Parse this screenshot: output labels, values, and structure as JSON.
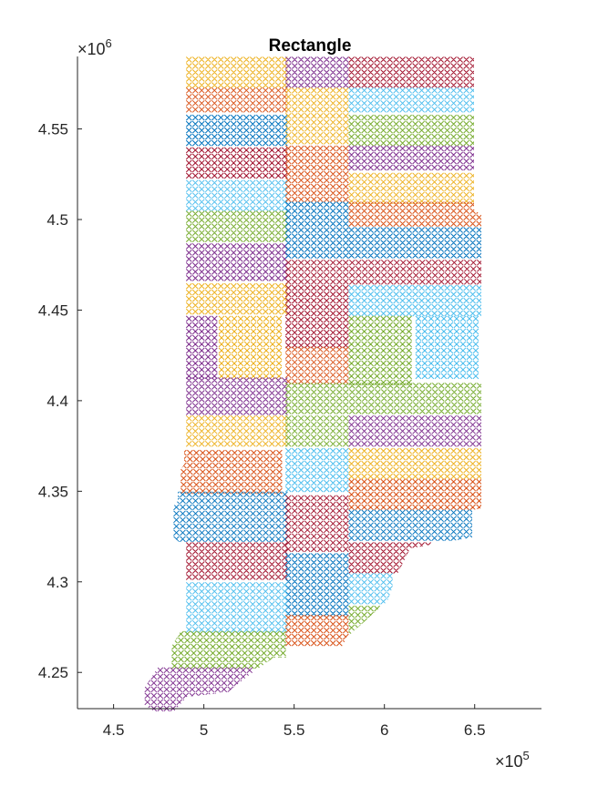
{
  "chart_data": {
    "type": "scatter",
    "title": "Rectangle",
    "xlabel": "",
    "ylabel": "",
    "x_exponent_label": "×10",
    "x_exponent_power": "5",
    "y_exponent_label": "×10",
    "y_exponent_power": "6",
    "xlim": [
      4.3,
      6.87
    ],
    "ylim": [
      4.23,
      4.59
    ],
    "x_scale_note": "x values in units of 1e5, y values in units of 1e6",
    "xticks": [
      4.5,
      5,
      5.5,
      6,
      6.5
    ],
    "xtick_labels": [
      "4.5",
      "5",
      "5.5",
      "6",
      "6.5"
    ],
    "yticks": [
      4.25,
      4.3,
      4.35,
      4.4,
      4.45,
      4.5,
      4.55
    ],
    "ytick_labels": [
      "4.25",
      "4.3",
      "4.35",
      "4.4",
      "4.45",
      "4.5",
      "4.55"
    ],
    "grid": false,
    "legend": "none",
    "marker": "x",
    "colors": [
      "#0072BD",
      "#D95319",
      "#EDB120",
      "#7E2F8E",
      "#77AC30",
      "#4DBEEE",
      "#A2142F"
    ],
    "regions": [
      {
        "x": [
          4.9,
          5.45
        ],
        "y": [
          4.573,
          4.59
        ],
        "color": "#EDB120"
      },
      {
        "x": [
          5.45,
          5.8
        ],
        "y": [
          4.573,
          4.59
        ],
        "color": "#7E2F8E"
      },
      {
        "x": [
          5.8,
          6.5
        ],
        "y": [
          4.573,
          4.59
        ],
        "color": "#A2142F"
      },
      {
        "x": [
          4.9,
          5.45
        ],
        "y": [
          4.558,
          4.573
        ],
        "color": "#D95319"
      },
      {
        "x": [
          4.9,
          5.45
        ],
        "y": [
          4.54,
          4.558
        ],
        "color": "#0072BD"
      },
      {
        "x": [
          4.9,
          5.45
        ],
        "y": [
          4.522,
          4.54
        ],
        "color": "#A2142F"
      },
      {
        "x": [
          4.9,
          5.45
        ],
        "y": [
          4.505,
          4.522
        ],
        "color": "#4DBEEE"
      },
      {
        "x": [
          4.9,
          5.45
        ],
        "y": [
          4.487,
          4.505
        ],
        "color": "#77AC30"
      },
      {
        "x": [
          4.9,
          5.45
        ],
        "y": [
          4.465,
          4.487
        ],
        "color": "#7E2F8E"
      },
      {
        "x": [
          4.9,
          5.45
        ],
        "y": [
          4.447,
          4.465
        ],
        "color": "#EDB120"
      },
      {
        "x": [
          5.45,
          5.8
        ],
        "y": [
          4.541,
          4.573
        ],
        "color": "#EDB120"
      },
      {
        "x": [
          5.45,
          5.8
        ],
        "y": [
          4.51,
          4.541
        ],
        "color": "#D95319"
      },
      {
        "x": [
          5.8,
          6.5
        ],
        "y": [
          4.558,
          4.573
        ],
        "color": "#4DBEEE"
      },
      {
        "x": [
          5.8,
          6.5
        ],
        "y": [
          4.541,
          4.558
        ],
        "color": "#77AC30"
      },
      {
        "x": [
          5.8,
          6.5
        ],
        "y": [
          4.526,
          4.541
        ],
        "color": "#7E2F8E"
      },
      {
        "x": [
          5.8,
          6.5
        ],
        "y": [
          4.51,
          4.526
        ],
        "color": "#EDB120"
      },
      {
        "x": [
          5.8,
          6.53
        ],
        "y": [
          4.496,
          4.51
        ],
        "color": "#D95319"
      },
      {
        "x": [
          5.45,
          5.8
        ],
        "y": [
          4.478,
          4.51
        ],
        "color": "#0072BD"
      },
      {
        "x": [
          5.8,
          6.53
        ],
        "y": [
          4.478,
          4.496
        ],
        "color": "#0072BD"
      },
      {
        "x": [
          5.45,
          6.53
        ],
        "y": [
          4.464,
          4.478
        ],
        "color": "#A2142F"
      },
      {
        "x": [
          5.45,
          5.8
        ],
        "y": [
          4.43,
          4.464
        ],
        "color": "#A2142F"
      },
      {
        "x": [
          5.8,
          6.53
        ],
        "y": [
          4.447,
          4.464
        ],
        "color": "#4DBEEE"
      },
      {
        "x": [
          4.9,
          5.08
        ],
        "y": [
          4.413,
          4.447
        ],
        "color": "#7E2F8E"
      },
      {
        "x": [
          5.08,
          5.45
        ],
        "y": [
          4.413,
          4.447
        ],
        "color": "#EDB120"
      },
      {
        "x": [
          5.8,
          6.17
        ],
        "y": [
          4.41,
          4.447
        ],
        "color": "#77AC30"
      },
      {
        "x": [
          6.17,
          6.53
        ],
        "y": [
          4.413,
          4.447
        ],
        "color": "#4DBEEE"
      },
      {
        "x": [
          5.45,
          5.8
        ],
        "y": [
          4.41,
          4.43
        ],
        "color": "#D95319"
      },
      {
        "x": [
          4.9,
          5.45
        ],
        "y": [
          4.392,
          4.413
        ],
        "color": "#7E2F8E"
      },
      {
        "x": [
          5.45,
          6.53
        ],
        "y": [
          4.392,
          4.41
        ],
        "color": "#77AC30"
      },
      {
        "x": [
          4.9,
          5.45
        ],
        "y": [
          4.373,
          4.392
        ],
        "color": "#EDB120"
      },
      {
        "x": [
          5.45,
          5.8
        ],
        "y": [
          4.374,
          4.392
        ],
        "color": "#77AC30"
      },
      {
        "x": [
          5.8,
          6.53
        ],
        "y": [
          4.374,
          4.392
        ],
        "color": "#7E2F8E"
      },
      {
        "x": [
          5.45,
          5.8
        ],
        "y": [
          4.348,
          4.374
        ],
        "color": "#4DBEEE"
      },
      {
        "x": [
          5.8,
          6.53
        ],
        "y": [
          4.357,
          4.374
        ],
        "color": "#EDB120"
      },
      {
        "x": [
          4.87,
          5.45
        ],
        "y": [
          4.35,
          4.373
        ],
        "color": "#D95319"
      },
      {
        "x": [
          5.8,
          6.53
        ],
        "y": [
          4.34,
          4.357
        ],
        "color": "#D95319"
      },
      {
        "x": [
          4.83,
          5.45
        ],
        "y": [
          4.322,
          4.35
        ],
        "color": "#0072BD"
      },
      {
        "x": [
          5.45,
          5.8
        ],
        "y": [
          4.316,
          4.348
        ],
        "color": "#A2142F"
      },
      {
        "x": [
          5.8,
          6.5
        ],
        "y": [
          4.322,
          4.34
        ],
        "color": "#0072BD"
      },
      {
        "x": [
          4.9,
          5.45
        ],
        "y": [
          4.3,
          4.322
        ],
        "color": "#A2142F"
      },
      {
        "x": [
          5.8,
          6.25
        ],
        "y": [
          4.305,
          4.322
        ],
        "color": "#A2142F"
      },
      {
        "x": [
          5.45,
          5.8
        ],
        "y": [
          4.282,
          4.316
        ],
        "color": "#0072BD"
      },
      {
        "x": [
          5.8,
          6.05
        ],
        "y": [
          4.287,
          4.305
        ],
        "color": "#4DBEEE"
      },
      {
        "x": [
          4.9,
          5.45
        ],
        "y": [
          4.273,
          4.3
        ],
        "color": "#4DBEEE"
      },
      {
        "x": [
          5.45,
          5.8
        ],
        "y": [
          4.263,
          4.282
        ],
        "color": "#D95319"
      },
      {
        "x": [
          5.8,
          5.97
        ],
        "y": [
          4.267,
          4.287
        ],
        "color": "#77AC30"
      },
      {
        "x": [
          4.82,
          5.45
        ],
        "y": [
          4.253,
          4.273
        ],
        "color": "#77AC30"
      },
      {
        "x": [
          4.67,
          5.27
        ],
        "y": [
          4.23,
          4.253
        ],
        "color": "#7E2F8E"
      }
    ]
  }
}
